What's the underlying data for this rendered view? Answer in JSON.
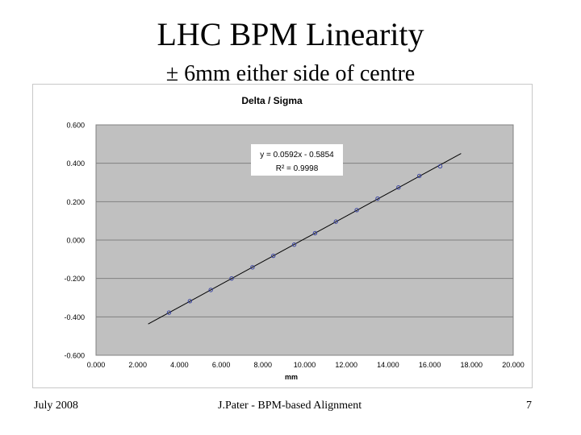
{
  "slide": {
    "title": "LHC BPM Linearity",
    "subtitle": "± 6mm either side of centre",
    "footer": {
      "date": "July 2008",
      "author": "J.Pater - BPM-based Alignment",
      "page_number": "7"
    }
  },
  "chart_data": {
    "type": "scatter",
    "title": "Delta / Sigma",
    "xlabel": "mm",
    "ylabel": "",
    "xlim": [
      0,
      20
    ],
    "ylim": [
      -0.6,
      0.6
    ],
    "x_ticks": [
      0,
      2,
      4,
      6,
      8,
      10,
      12,
      14,
      16,
      18,
      20
    ],
    "x_tick_labels": [
      "0.000",
      "2.000",
      "4.000",
      "6.000",
      "8.000",
      "10.000",
      "12.000",
      "14.000",
      "16.000",
      "18.000",
      "20.000"
    ],
    "y_ticks": [
      0.6,
      0.4,
      0.2,
      0.0,
      -0.2,
      -0.4,
      -0.6
    ],
    "y_tick_labels": [
      "0.600",
      "0.400",
      "0.200",
      "0.000",
      "-0.200",
      "-0.400",
      "-0.600"
    ],
    "grid": true,
    "legend": "none",
    "series": [
      {
        "x": [
          3.5,
          4.5,
          5.5,
          6.5,
          7.5,
          8.5,
          9.5,
          10.5,
          11.5,
          12.5,
          13.5,
          14.5,
          15.5,
          16.5
        ],
        "y": [
          -0.378,
          -0.318,
          -0.26,
          -0.2,
          -0.142,
          -0.082,
          -0.024,
          0.036,
          0.096,
          0.156,
          0.216,
          0.274,
          0.334,
          0.384
        ]
      }
    ],
    "trendline": {
      "slope": 0.0592,
      "intercept": -0.5854,
      "x_range": [
        2.5,
        17.5
      ],
      "equation": "y = 0.0592x - 0.5854",
      "r_squared": "R² = 0.9998"
    },
    "colors": {
      "plot_background": "#c0c0c0",
      "gridline": "#808080",
      "marker": "#3a44a0",
      "trendline": "#000000"
    }
  }
}
